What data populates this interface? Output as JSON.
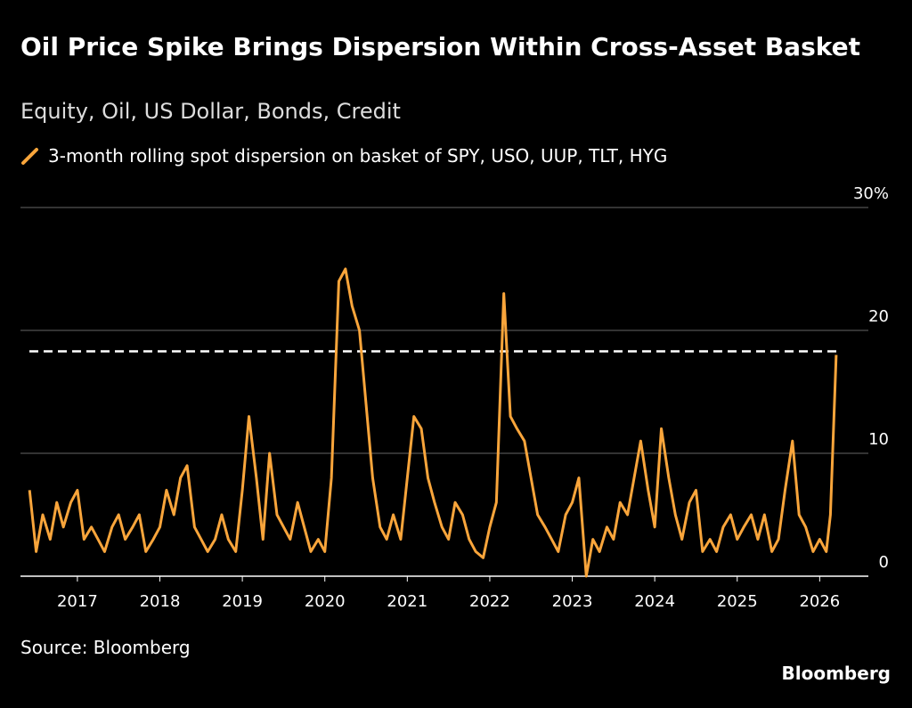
{
  "chart_data": {
    "type": "line",
    "title": "Oil Price Spike Brings Dispersion Within Cross-Asset Basket",
    "subtitle": "Equity, Oil, US Dollar, Bonds, Credit",
    "source": "Source: Bloomberg",
    "brand": "Bloomberg",
    "x": [
      2016.42,
      2016.5,
      2016.58,
      2016.67,
      2016.75,
      2016.83,
      2016.92,
      2017.0,
      2017.08,
      2017.17,
      2017.25,
      2017.33,
      2017.42,
      2017.5,
      2017.58,
      2017.67,
      2017.75,
      2017.83,
      2017.92,
      2018.0,
      2018.08,
      2018.17,
      2018.25,
      2018.33,
      2018.42,
      2018.5,
      2018.58,
      2018.67,
      2018.75,
      2018.83,
      2018.92,
      2019.0,
      2019.08,
      2019.17,
      2019.25,
      2019.33,
      2019.42,
      2019.5,
      2019.58,
      2019.67,
      2019.75,
      2019.83,
      2019.92,
      2020.0,
      2020.08,
      2020.17,
      2020.25,
      2020.33,
      2020.42,
      2020.5,
      2020.58,
      2020.67,
      2020.75,
      2020.83,
      2020.92,
      2021.0,
      2021.08,
      2021.17,
      2021.25,
      2021.33,
      2021.42,
      2021.5,
      2021.58,
      2021.67,
      2021.75,
      2021.83,
      2021.92,
      2022.0,
      2022.08,
      2022.17,
      2022.25,
      2022.33,
      2022.42,
      2022.5,
      2022.58,
      2022.67,
      2022.75,
      2022.83,
      2022.92,
      2023.0,
      2023.08,
      2023.17,
      2023.25,
      2023.33,
      2023.42,
      2023.5,
      2023.58,
      2023.67,
      2023.75,
      2023.83,
      2023.92,
      2024.0,
      2024.08,
      2024.17,
      2024.25,
      2024.33,
      2024.42,
      2024.5,
      2024.58,
      2024.67,
      2024.75,
      2024.83,
      2024.92,
      2025.0,
      2025.08,
      2025.17,
      2025.25,
      2025.33,
      2025.42,
      2025.5,
      2025.58,
      2025.67,
      2025.75,
      2025.83,
      2025.92,
      2026.0,
      2026.08,
      2026.13,
      2026.2
    ],
    "series": [
      {
        "name": "3-month rolling spot dispersion on basket of SPY, USO, UUP, TLT, HYG",
        "color": "#f9a53b",
        "values": [
          7,
          2,
          5,
          3,
          6,
          4,
          6,
          7,
          3,
          4,
          3,
          2,
          4,
          5,
          3,
          4,
          5,
          2,
          3,
          4,
          7,
          5,
          8,
          9,
          4,
          3,
          2,
          3,
          5,
          3,
          2,
          7,
          13,
          8,
          3,
          10,
          5,
          4,
          3,
          6,
          4,
          2,
          3,
          2,
          8,
          24,
          25,
          22,
          20,
          14,
          8,
          4,
          3,
          5,
          3,
          8,
          13,
          12,
          8,
          6,
          4,
          3,
          6,
          5,
          3,
          2,
          1.5,
          4,
          6,
          23,
          13,
          12,
          11,
          8,
          5,
          4,
          3,
          2,
          5,
          6,
          8,
          0,
          3,
          2,
          4,
          3,
          6,
          5,
          8,
          11,
          7,
          4,
          12,
          8,
          5,
          3,
          6,
          7,
          2,
          3,
          2,
          4,
          5,
          3,
          4,
          5,
          3,
          5,
          2,
          3,
          7,
          11,
          5,
          4,
          2,
          3,
          2,
          5,
          18
        ]
      }
    ],
    "reference_line": 18.3,
    "xlim": [
      2016.31,
      2026.59
    ],
    "xticks": [
      2017,
      2018,
      2019,
      2020,
      2021,
      2022,
      2023,
      2024,
      2025,
      2026
    ],
    "ylim": [
      0,
      30
    ],
    "yticks": [
      0,
      10,
      20,
      {
        "value": 30,
        "label": "30%"
      }
    ],
    "grid": true
  }
}
